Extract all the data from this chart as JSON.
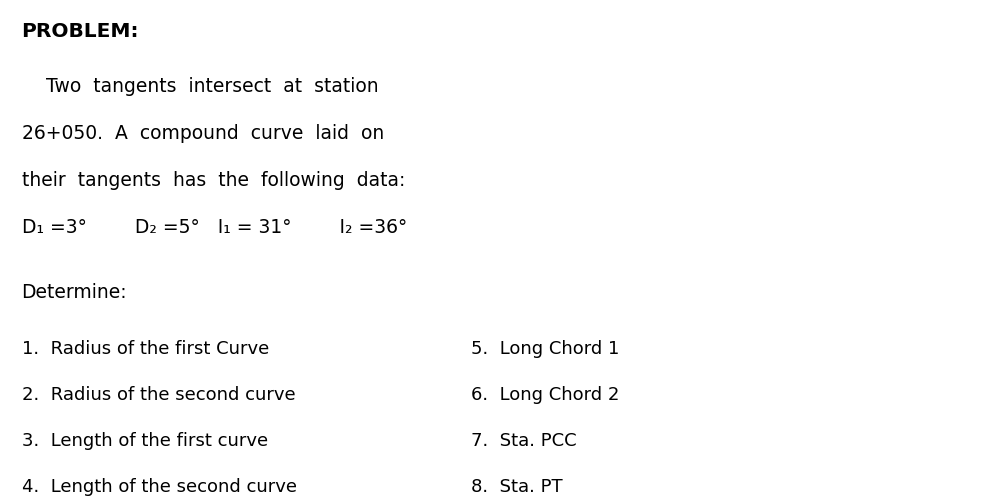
{
  "title": "PROBLEM:",
  "line1": "    Two  tangents  intersect  at  station",
  "line2": "26+050.  A  compound  curve  laid  on",
  "line3": "their  tangents  has  the  following  data:",
  "data_line": "D₁ =3°        D₂ =5°   I₁ = 31°        I₂ =36°",
  "determine_label": "Determine:",
  "left_items": [
    "1.  Radius of the first Curve",
    "2.  Radius of the second curve",
    "3.  Length of the first curve",
    "4.  Length of the second curve"
  ],
  "right_items": [
    "5.  Long Chord 1",
    "6.  Long Chord 2",
    "7.  Sta. PCC",
    "8.  Sta. PT"
  ],
  "bg_color": "#ffffff",
  "text_color": "#000000",
  "title_fontsize": 14.5,
  "body_fontsize": 13.5,
  "list_fontsize": 13.0
}
